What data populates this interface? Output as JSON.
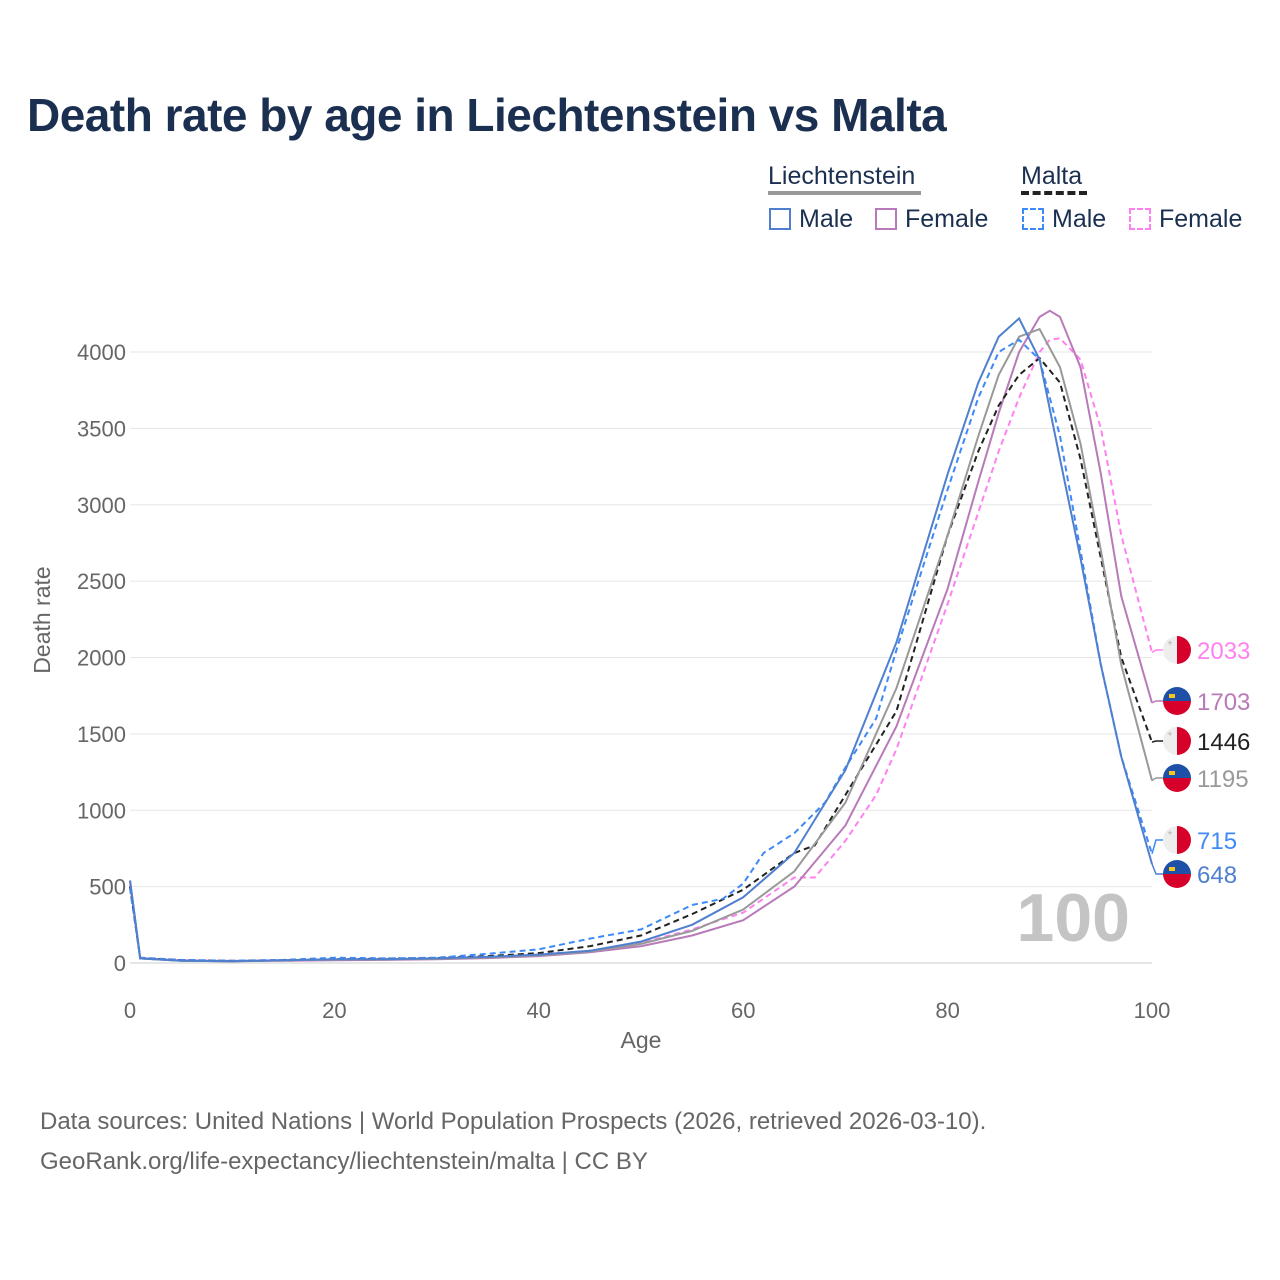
{
  "chart_data": {
    "type": "line",
    "title": "Death rate by age in Liechtenstein vs Malta",
    "xlabel": "Age",
    "ylabel": "Death rate",
    "xlim": [
      0,
      100
    ],
    "ylim": [
      0,
      4300
    ],
    "xticks": [
      0,
      20,
      40,
      60,
      80,
      100
    ],
    "yticks": [
      0,
      500,
      1000,
      1500,
      2000,
      2500,
      3000,
      3500,
      4000
    ],
    "grid": true,
    "current_age_label": "100",
    "legend": {
      "groups": [
        {
          "label": "Liechtenstein",
          "color": "#999999",
          "dashed": false
        },
        {
          "label": "Malta",
          "color": "#222222",
          "dashed": true
        }
      ],
      "items": [
        {
          "label": "Male",
          "color": "#4f7fcf",
          "dashed": false
        },
        {
          "label": "Female",
          "color": "#b87ab8",
          "dashed": false
        },
        {
          "label": "Male",
          "color": "#3d8af7",
          "dashed": true
        },
        {
          "label": "Female",
          "color": "#ff80f0",
          "dashed": true
        }
      ]
    },
    "series": [
      {
        "name": "Malta Female",
        "country": "Malta",
        "color": "#ff80f0",
        "dashed": true,
        "end_value": "2033",
        "points": [
          [
            0,
            510
          ],
          [
            1,
            30
          ],
          [
            5,
            18
          ],
          [
            10,
            14
          ],
          [
            15,
            18
          ],
          [
            20,
            22
          ],
          [
            25,
            24
          ],
          [
            30,
            28
          ],
          [
            35,
            38
          ],
          [
            40,
            55
          ],
          [
            45,
            80
          ],
          [
            50,
            130
          ],
          [
            55,
            220
          ],
          [
            60,
            330
          ],
          [
            65,
            560
          ],
          [
            67,
            560
          ],
          [
            70,
            800
          ],
          [
            73,
            1100
          ],
          [
            75,
            1400
          ],
          [
            80,
            2350
          ],
          [
            83,
            2950
          ],
          [
            85,
            3350
          ],
          [
            87,
            3700
          ],
          [
            89,
            4000
          ],
          [
            90,
            4080
          ],
          [
            91,
            4090
          ],
          [
            93,
            3950
          ],
          [
            95,
            3500
          ],
          [
            97,
            2800
          ],
          [
            100,
            2033
          ]
        ]
      },
      {
        "name": "Liechtenstein Female",
        "country": "Liechtenstein",
        "color": "#b87ab8",
        "dashed": false,
        "end_value": "1703",
        "points": [
          [
            0,
            540
          ],
          [
            1,
            30
          ],
          [
            5,
            15
          ],
          [
            10,
            12
          ],
          [
            15,
            15
          ],
          [
            20,
            18
          ],
          [
            25,
            20
          ],
          [
            30,
            24
          ],
          [
            35,
            32
          ],
          [
            40,
            45
          ],
          [
            45,
            70
          ],
          [
            50,
            110
          ],
          [
            55,
            180
          ],
          [
            60,
            280
          ],
          [
            65,
            500
          ],
          [
            70,
            900
          ],
          [
            75,
            1550
          ],
          [
            80,
            2450
          ],
          [
            83,
            3150
          ],
          [
            85,
            3600
          ],
          [
            87,
            4000
          ],
          [
            89,
            4230
          ],
          [
            90,
            4270
          ],
          [
            91,
            4230
          ],
          [
            93,
            3900
          ],
          [
            95,
            3200
          ],
          [
            97,
            2400
          ],
          [
            100,
            1703
          ]
        ]
      },
      {
        "name": "Malta",
        "country": "Malta",
        "color": "#222222",
        "dashed": true,
        "end_value": "1446",
        "points": [
          [
            0,
            500
          ],
          [
            1,
            32
          ],
          [
            5,
            18
          ],
          [
            10,
            14
          ],
          [
            15,
            18
          ],
          [
            20,
            25
          ],
          [
            25,
            28
          ],
          [
            30,
            32
          ],
          [
            35,
            45
          ],
          [
            40,
            65
          ],
          [
            45,
            110
          ],
          [
            50,
            180
          ],
          [
            55,
            320
          ],
          [
            60,
            480
          ],
          [
            65,
            720
          ],
          [
            67,
            770
          ],
          [
            70,
            1100
          ],
          [
            75,
            1650
          ],
          [
            80,
            2800
          ],
          [
            83,
            3350
          ],
          [
            85,
            3650
          ],
          [
            87,
            3850
          ],
          [
            89,
            3960
          ],
          [
            91,
            3800
          ],
          [
            93,
            3300
          ],
          [
            95,
            2650
          ],
          [
            97,
            2000
          ],
          [
            100,
            1446
          ]
        ]
      },
      {
        "name": "Liechtenstein",
        "country": "Liechtenstein",
        "color": "#999999",
        "dashed": false,
        "end_value": "1195",
        "points": [
          [
            0,
            540
          ],
          [
            1,
            30
          ],
          [
            5,
            15
          ],
          [
            10,
            12
          ],
          [
            15,
            18
          ],
          [
            20,
            22
          ],
          [
            25,
            24
          ],
          [
            30,
            27
          ],
          [
            35,
            36
          ],
          [
            40,
            50
          ],
          [
            45,
            75
          ],
          [
            50,
            125
          ],
          [
            55,
            210
          ],
          [
            60,
            350
          ],
          [
            65,
            600
          ],
          [
            70,
            1050
          ],
          [
            75,
            1800
          ],
          [
            80,
            2800
          ],
          [
            83,
            3450
          ],
          [
            85,
            3850
          ],
          [
            87,
            4100
          ],
          [
            89,
            4150
          ],
          [
            91,
            3900
          ],
          [
            93,
            3400
          ],
          [
            95,
            2700
          ],
          [
            97,
            1950
          ],
          [
            100,
            1195
          ]
        ]
      },
      {
        "name": "Malta Male",
        "country": "Malta",
        "color": "#3d8af7",
        "dashed": true,
        "end_value": "715",
        "points": [
          [
            0,
            490
          ],
          [
            1,
            35
          ],
          [
            5,
            20
          ],
          [
            10,
            15
          ],
          [
            15,
            20
          ],
          [
            20,
            35
          ],
          [
            25,
            30
          ],
          [
            30,
            35
          ],
          [
            35,
            60
          ],
          [
            40,
            90
          ],
          [
            45,
            160
          ],
          [
            50,
            220
          ],
          [
            55,
            380
          ],
          [
            58,
            420
          ],
          [
            60,
            520
          ],
          [
            62,
            720
          ],
          [
            65,
            850
          ],
          [
            68,
            1050
          ],
          [
            70,
            1280
          ],
          [
            73,
            1600
          ],
          [
            75,
            2050
          ],
          [
            80,
            3100
          ],
          [
            83,
            3700
          ],
          [
            85,
            4000
          ],
          [
            87,
            4080
          ],
          [
            89,
            3950
          ],
          [
            91,
            3450
          ],
          [
            93,
            2700
          ],
          [
            95,
            1950
          ],
          [
            97,
            1350
          ],
          [
            100,
            715
          ]
        ]
      },
      {
        "name": "Liechtenstein Male",
        "country": "Liechtenstein",
        "color": "#4f7fcf",
        "dashed": false,
        "end_value": "648",
        "points": [
          [
            0,
            540
          ],
          [
            1,
            30
          ],
          [
            5,
            15
          ],
          [
            10,
            12
          ],
          [
            15,
            18
          ],
          [
            20,
            25
          ],
          [
            25,
            25
          ],
          [
            30,
            30
          ],
          [
            35,
            40
          ],
          [
            40,
            55
          ],
          [
            45,
            80
          ],
          [
            50,
            140
          ],
          [
            55,
            250
          ],
          [
            60,
            430
          ],
          [
            65,
            720
          ],
          [
            70,
            1263
          ],
          [
            75,
            2100
          ],
          [
            80,
            3200
          ],
          [
            83,
            3800
          ],
          [
            85,
            4100
          ],
          [
            87,
            4220
          ],
          [
            89,
            3950
          ],
          [
            91,
            3300
          ],
          [
            93,
            2650
          ],
          [
            95,
            1950
          ],
          [
            97,
            1350
          ],
          [
            100,
            648
          ]
        ]
      }
    ]
  },
  "footer": {
    "line1": "Data sources: United Nations | World Population Prospects (2026, retrieved 2026-03-10).",
    "line2": "GeoRank.org/life-expectancy/liechtenstein/malta | CC BY"
  }
}
